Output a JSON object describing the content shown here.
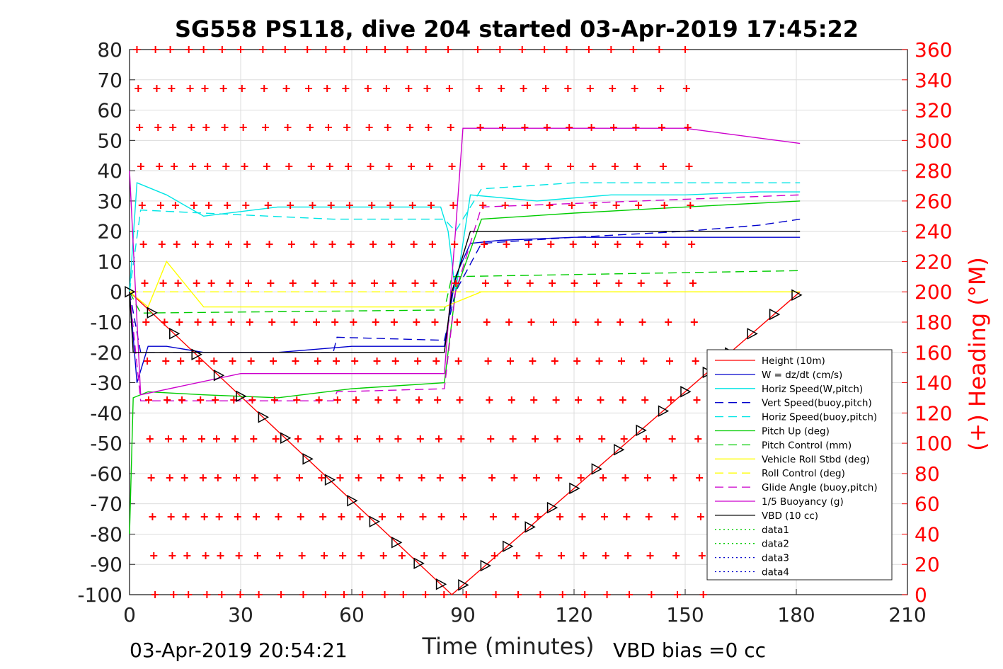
{
  "chart_data": {
    "type": "line",
    "title": "SG558 PS118, dive 204 started 03-Apr-2019 17:45:22",
    "xlabel": "Time (minutes)",
    "ylabel": "",
    "ylabel_right": "(+) Heading (°M)",
    "xlim": [
      0,
      210
    ],
    "ylim": [
      -100,
      80
    ],
    "ylim_right": [
      0,
      360
    ],
    "x_ticks": [
      "0",
      "30",
      "60",
      "90",
      "120",
      "150",
      "180",
      "210"
    ],
    "y_ticks": [
      "80",
      "70",
      "60",
      "50",
      "40",
      "30",
      "20",
      "10",
      "0",
      "-10",
      "-20",
      "-30",
      "-40",
      "-50",
      "-60",
      "-70",
      "-80",
      "-90",
      "-100"
    ],
    "y_ticks_right": [
      "360",
      "340",
      "320",
      "300",
      "280",
      "260",
      "240",
      "220",
      "200",
      "180",
      "160",
      "140",
      "120",
      "100",
      "80",
      "60",
      "40",
      "20",
      "0"
    ],
    "grid": true,
    "legend_position": "bottom-right",
    "footer_left": "03-Apr-2019 20:54:21",
    "footer_right": "VBD bias =0 cc",
    "series": [
      {
        "name": "Height (10m)",
        "color": "#ff0000",
        "style": "solid",
        "x": [
          0,
          87,
          181
        ],
        "y": [
          0,
          -100,
          0
        ]
      },
      {
        "name": "W = dz/dt (cm/s)",
        "color": "#0000cc",
        "style": "solid",
        "x": [
          0,
          2,
          5,
          10,
          20,
          40,
          60,
          80,
          85,
          88,
          92,
          100,
          120,
          140,
          160,
          181
        ],
        "y": [
          0,
          -30,
          -18,
          -18,
          -20,
          -20,
          -18,
          -18,
          -18,
          5,
          16,
          17,
          18,
          18,
          18,
          18
        ]
      },
      {
        "name": "Horiz Speed(W,pitch)",
        "color": "#00e5e5",
        "style": "solid",
        "x": [
          0,
          2,
          10,
          20,
          40,
          60,
          84,
          86,
          88,
          92,
          110,
          130,
          150,
          170,
          181
        ],
        "y": [
          0,
          36,
          32,
          25,
          28,
          28,
          28,
          20,
          0,
          32,
          30,
          32,
          32,
          33,
          33
        ]
      },
      {
        "name": "Vert Speed(buoy,pitch)",
        "color": "#0000cc",
        "style": "dashed",
        "x": [
          0,
          3,
          20,
          55,
          56,
          85,
          88,
          95,
          120,
          150,
          170,
          181
        ],
        "y": [
          0,
          -20,
          -20,
          -20,
          -15,
          -16,
          0,
          16,
          18,
          20,
          22,
          24
        ]
      },
      {
        "name": "Horiz Speed(buoy,pitch)",
        "color": "#00e5e5",
        "style": "dashed",
        "x": [
          0,
          3,
          20,
          55,
          85,
          88,
          95,
          120,
          150,
          181
        ],
        "y": [
          0,
          27,
          26,
          24,
          24,
          20,
          34,
          36,
          36,
          36
        ]
      },
      {
        "name": "Pitch Up (deg)",
        "color": "#00cc00",
        "style": "solid",
        "x": [
          0,
          1,
          5,
          20,
          40,
          60,
          85,
          88,
          95,
          120,
          150,
          181
        ],
        "y": [
          -80,
          -35,
          -33,
          -34,
          -35,
          -32,
          -30,
          0,
          24,
          26,
          28,
          30
        ]
      },
      {
        "name": "Pitch Control (mm)",
        "color": "#00cc00",
        "style": "dashed",
        "x": [
          0,
          3,
          85,
          87,
          181
        ],
        "y": [
          0,
          -7,
          -6,
          5,
          7
        ]
      },
      {
        "name": "Vehicle Roll Stbd (deg)",
        "color": "#ffff00",
        "style": "solid",
        "x": [
          0,
          5,
          10,
          20,
          40,
          60,
          80,
          85,
          95,
          120,
          150,
          181
        ],
        "y": [
          0,
          -5,
          10,
          -5,
          -5,
          -5,
          -5,
          -5,
          0,
          0,
          0,
          0
        ]
      },
      {
        "name": "Roll Control (deg)",
        "color": "#ffff00",
        "style": "dashed",
        "x": [
          0,
          181
        ],
        "y": [
          0,
          0
        ]
      },
      {
        "name": "Glide Angle (buoy,pitch)",
        "color": "#cc00cc",
        "style": "dashed",
        "x": [
          0,
          3,
          55,
          56,
          85,
          88,
          95,
          181
        ],
        "y": [
          0,
          -36,
          -36,
          -33,
          -32,
          0,
          28,
          32
        ]
      },
      {
        "name": "1/5 Buoyancy (g)",
        "color": "#cc00cc",
        "style": "solid",
        "x": [
          0,
          3,
          30,
          85,
          88,
          90,
          95,
          150,
          181
        ],
        "y": [
          40,
          -34,
          -27,
          -27,
          20,
          54,
          54,
          54,
          49
        ]
      },
      {
        "name": "VBD (10 cc)",
        "color": "#000000",
        "style": "solid",
        "x": [
          0,
          1,
          85,
          87,
          92,
          181
        ],
        "y": [
          0,
          -20,
          -20,
          0,
          20,
          20
        ]
      },
      {
        "name": "data1",
        "color": "#00cc00",
        "style": "dotted",
        "x": [],
        "y": []
      },
      {
        "name": "data2",
        "color": "#00cc00",
        "style": "dotted",
        "x": [],
        "y": []
      },
      {
        "name": "data3",
        "color": "#0000cc",
        "style": "dotted",
        "x": [],
        "y": []
      },
      {
        "name": "data4",
        "color": "#0000cc",
        "style": "dotted",
        "x": [],
        "y": []
      }
    ],
    "heading_series": {
      "marker": "+",
      "color": "#ff0000",
      "axis": "right",
      "note_sweeps_minutes": [
        2,
        7,
        11,
        16,
        20,
        25,
        30,
        36,
        42,
        48,
        53,
        58,
        64,
        69,
        75,
        80,
        86,
        94,
        100,
        106,
        112,
        118,
        124,
        130,
        136,
        143,
        150
      ]
    }
  }
}
